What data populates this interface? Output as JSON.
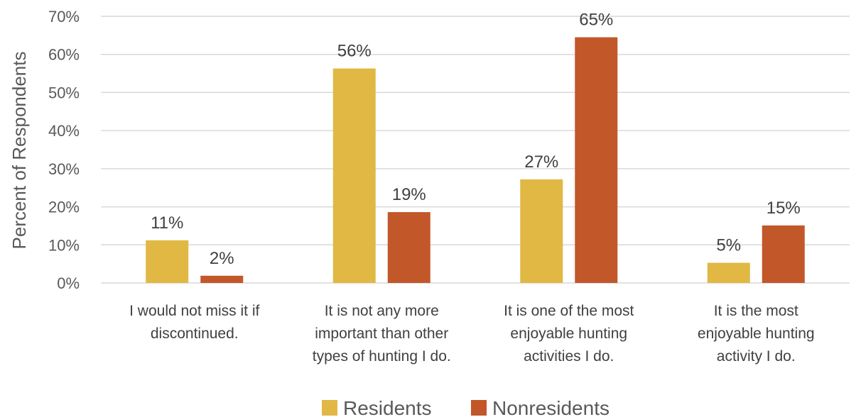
{
  "chart_data": {
    "type": "bar",
    "categories": [
      [
        "I would not miss it if",
        "discontinued."
      ],
      [
        "It is not any more",
        "important than other",
        "types of hunting I do."
      ],
      [
        "It is one of the most",
        "enjoyable hunting",
        "activities I do."
      ],
      [
        "It is the most",
        "enjoyable hunting",
        "activity I do."
      ]
    ],
    "series": [
      {
        "name": "Residents",
        "values": [
          11.2,
          56.3,
          27.2,
          5.3
        ],
        "labels": [
          "11%",
          "56%",
          "27%",
          "5%"
        ],
        "color": "#E1B844"
      },
      {
        "name": "Nonresidents",
        "values": [
          1.9,
          18.6,
          64.5,
          15.1
        ],
        "labels": [
          "2%",
          "19%",
          "65%",
          "15%"
        ],
        "color": "#C2572A"
      }
    ],
    "ylabel": "Percent of Respondents",
    "ylim": [
      0,
      70
    ],
    "yticks": [
      0,
      10,
      20,
      30,
      40,
      50,
      60,
      70
    ],
    "ytick_labels": [
      "0%",
      "10%",
      "20%",
      "30%",
      "40%",
      "50%",
      "60%",
      "70%"
    ],
    "grid": true,
    "legend": "bottom"
  }
}
